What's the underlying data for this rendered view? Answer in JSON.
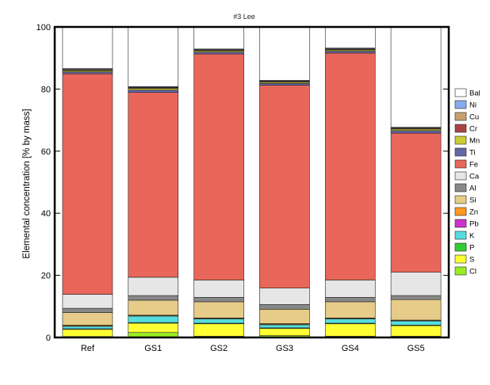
{
  "chart_data": {
    "type": "bar",
    "stacked": true,
    "title": "#3 Lee",
    "xlabel": "",
    "ylabel": "Elemental concentration [% by mass]",
    "ylim": [
      0,
      100
    ],
    "yticks": [
      0,
      20,
      40,
      60,
      80,
      100
    ],
    "grid": false,
    "legend_position": "right",
    "categories": [
      "Ref",
      "GS1",
      "GS2",
      "GS3",
      "GS4",
      "GS5"
    ],
    "series": [
      {
        "name": "Cl",
        "color": "#99ee22",
        "values": [
          0.3,
          1.6,
          0.4,
          0.6,
          0.4,
          0.4
        ]
      },
      {
        "name": "S",
        "color": "#ffff33",
        "values": [
          2.3,
          3.0,
          4.0,
          2.3,
          4.0,
          3.4
        ]
      },
      {
        "name": "P",
        "color": "#33cc33",
        "values": [
          0.2,
          0.2,
          0.2,
          0.2,
          0.2,
          0.2
        ]
      },
      {
        "name": "K",
        "color": "#55dddd",
        "values": [
          0.8,
          2.1,
          1.4,
          1.0,
          1.4,
          1.3
        ]
      },
      {
        "name": "Pb",
        "color": "#cc33cc",
        "values": [
          0.1,
          0.1,
          0.1,
          0.1,
          0.1,
          0.1
        ]
      },
      {
        "name": "Zn",
        "color": "#ff9922",
        "values": [
          0.3,
          0.2,
          0.2,
          0.3,
          0.2,
          0.2
        ]
      },
      {
        "name": "Si",
        "color": "#e6cc88",
        "values": [
          4.0,
          4.8,
          5.2,
          4.6,
          5.2,
          6.6
        ]
      },
      {
        "name": "Al",
        "color": "#888888",
        "values": [
          1.4,
          1.5,
          1.4,
          1.5,
          1.4,
          1.3
        ]
      },
      {
        "name": "Ca",
        "color": "#e6e6e6",
        "values": [
          4.5,
          5.9,
          5.6,
          5.3,
          5.6,
          7.5
        ]
      },
      {
        "name": "Fe",
        "color": "#e8675a",
        "values": [
          71.0,
          59.5,
          72.8,
          65.3,
          73.1,
          44.8
        ]
      },
      {
        "name": "Ti",
        "color": "#6666aa",
        "values": [
          0.6,
          0.8,
          0.6,
          0.6,
          0.6,
          0.8
        ]
      },
      {
        "name": "Mn",
        "color": "#cccc33",
        "values": [
          0.4,
          0.5,
          0.4,
          0.4,
          0.4,
          0.5
        ]
      },
      {
        "name": "Cr",
        "color": "#aa4444",
        "values": [
          0.2,
          0.2,
          0.2,
          0.2,
          0.2,
          0.2
        ]
      },
      {
        "name": "Cu",
        "color": "#c8a070",
        "values": [
          0.3,
          0.2,
          0.2,
          0.2,
          0.2,
          0.2
        ]
      },
      {
        "name": "Ni",
        "color": "#88aaee",
        "values": [
          0.2,
          0.2,
          0.2,
          0.2,
          0.2,
          0.2
        ]
      },
      {
        "name": "Bal",
        "color": "#ffffff",
        "values": [
          13.4,
          19.2,
          7.1,
          17.2,
          6.6,
          32.4
        ]
      }
    ],
    "legend_order": [
      "Bal",
      "Ni",
      "Cu",
      "Cr",
      "Mn",
      "Ti",
      "Fe",
      "Ca",
      "Al",
      "Si",
      "Zn",
      "Pb",
      "K",
      "P",
      "S",
      "Cl"
    ]
  }
}
